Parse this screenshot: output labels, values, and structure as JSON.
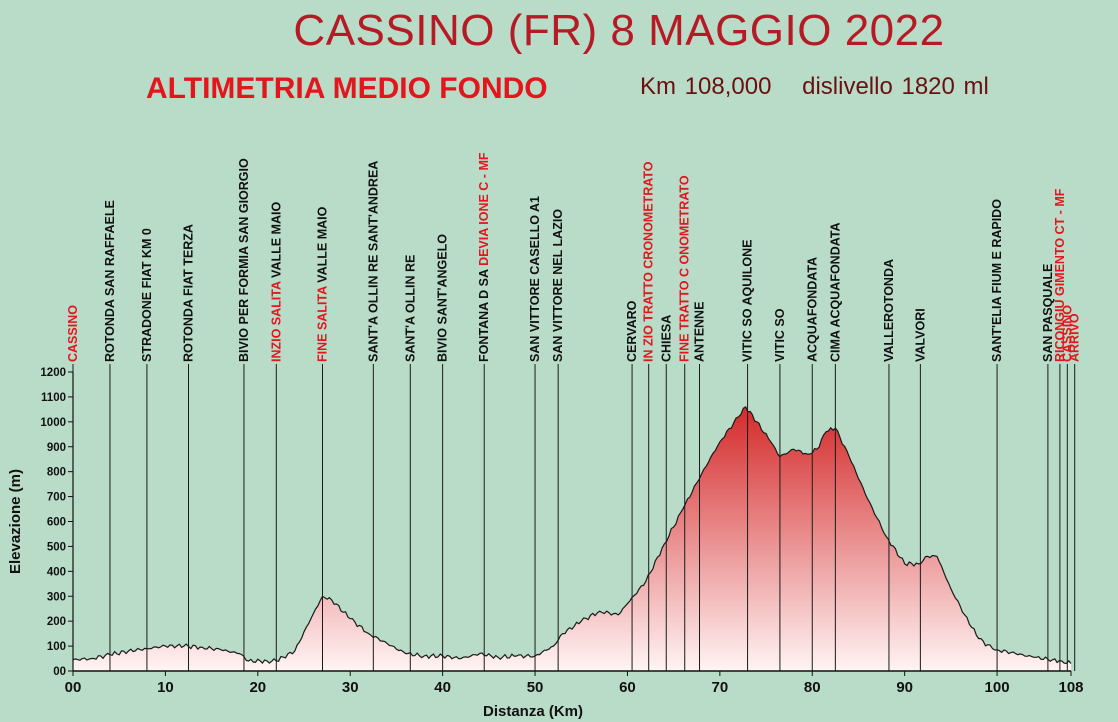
{
  "header": {
    "title": "CASSINO (FR)  8 MAGGIO 2022",
    "subtitle": "ALTIMETRIA  MEDIO FONDO",
    "distance": "Km 108,000",
    "elevation_gain": "dislivello 1820 ml"
  },
  "colors": {
    "background": "#b9dcc8",
    "fill_top": "#d42a2a",
    "fill_bottom": "#fff4f4",
    "label_black": "#111111",
    "label_red": "#e3161d"
  },
  "chart_data": {
    "type": "area",
    "title": "ALTIMETRIA  MEDIO FONDO",
    "xlabel": "Distanza (Km)",
    "ylabel": "Elevazione (m)",
    "xlim": [
      0,
      108
    ],
    "ylim": [
      0,
      1200
    ],
    "x_ticks": [
      "00",
      "10",
      "20",
      "30",
      "40",
      "50",
      "60",
      "70",
      "80",
      "90",
      "100",
      "108"
    ],
    "x_tick_values": [
      0,
      10,
      20,
      30,
      40,
      50,
      60,
      70,
      80,
      90,
      100,
      108
    ],
    "y_ticks": [
      0,
      100,
      200,
      300,
      400,
      500,
      600,
      700,
      800,
      900,
      1000,
      1100,
      1200
    ],
    "y_tick_labels": [
      "00",
      "100",
      "200",
      "300",
      "400",
      "500",
      "600",
      "700",
      "800",
      "900",
      "1000",
      "1100",
      "1200"
    ],
    "grid": false,
    "x": [
      0,
      2,
      4,
      6,
      8,
      10,
      12,
      14,
      16,
      18,
      19,
      21,
      22,
      24,
      26,
      27,
      28,
      30,
      32,
      34,
      36,
      38,
      40,
      42,
      44,
      46,
      48,
      50,
      52,
      53,
      55,
      57,
      59,
      60,
      62,
      64,
      66,
      68,
      70,
      72,
      72.8,
      74,
      75.5,
      76.5,
      78,
      79.5,
      80.5,
      81.5,
      82.5,
      84,
      86,
      88,
      90,
      91.5,
      92.5,
      93.5,
      95,
      96.5,
      98,
      99.5,
      100,
      102,
      104,
      106,
      107,
      108
    ],
    "y": [
      45,
      50,
      65,
      80,
      90,
      100,
      100,
      95,
      85,
      70,
      40,
      40,
      40,
      80,
      230,
      300,
      285,
      210,
      150,
      110,
      70,
      60,
      60,
      50,
      70,
      55,
      60,
      60,
      100,
      150,
      200,
      240,
      225,
      270,
      360,
      510,
      650,
      790,
      920,
      1020,
      1060,
      1000,
      920,
      860,
      890,
      870,
      890,
      960,
      975,
      860,
      690,
      540,
      430,
      430,
      460,
      460,
      330,
      225,
      130,
      90,
      85,
      70,
      55,
      45,
      40,
      30
    ],
    "waypoints": [
      {
        "km": 0,
        "label": "CASSINO",
        "red": true
      },
      {
        "km": 4,
        "label": "ROTONDA SAN RAFFAELE",
        "red": false
      },
      {
        "km": 8,
        "label": "STRADONE FIAT KM 0",
        "red": false
      },
      {
        "km": 12.5,
        "label": "ROTONDA  FIAT TERZA",
        "red": false
      },
      {
        "km": 18.5,
        "label": "BIVIO PER FORMIA SAN GIORGIO",
        "red": false
      },
      {
        "km": 22,
        "label": "INZIO SALITA",
        "red": true,
        "label2": "VALLE MAIO"
      },
      {
        "km": 27,
        "label": "FINE SALITA",
        "red": true,
        "label2": "VALLE MAIO"
      },
      {
        "km": 32.5,
        "label": "SANT'A   OLLIN   RE SANT'ANDREA",
        "red": false
      },
      {
        "km": 36.5,
        "label": "SANT'A   OLLIN   RE",
        "red": false
      },
      {
        "km": 40,
        "label": "BIVIO SANT'ANGELO",
        "red": false
      },
      {
        "km": 44.5,
        "label": "FONTANA D   SA",
        "red": false,
        "label2": "DEVIA   IONE C  - MF",
        "red2": true
      },
      {
        "km": 50,
        "label": "SAN VITTORE CASELLO A1",
        "red": false
      },
      {
        "km": 52.5,
        "label": "SAN VITTORE NEL LAZIO",
        "red": false
      },
      {
        "km": 60.5,
        "label": "CERVARO",
        "red": false
      },
      {
        "km": 62.3,
        "label": "IN ZIO TRATTO CRONOMETRATO",
        "red": true
      },
      {
        "km": 64.2,
        "label": "CHIESA",
        "red": false
      },
      {
        "km": 66.2,
        "label": "FINE  TRATTO C   ONOMETRATO",
        "red": true
      },
      {
        "km": 67.8,
        "label": "ANTENNE",
        "red": false
      },
      {
        "km": 73,
        "label": "VITIC   SO AQUILONE",
        "red": false
      },
      {
        "km": 76.5,
        "label": "VITIC   SO",
        "red": false
      },
      {
        "km": 80,
        "label": "ACQUAFONDATA",
        "red": false
      },
      {
        "km": 82.5,
        "label": "CIMA ACQUAFONDATA",
        "red": false
      },
      {
        "km": 88.3,
        "label": "VALLEROTONDA",
        "red": false
      },
      {
        "km": 91.7,
        "label": "VALVORI",
        "red": false
      },
      {
        "km": 100,
        "label": "SANT'ELIA FIUM   E RAPIDO",
        "red": false
      },
      {
        "km": 105.5,
        "label": "SAN PASQUALE",
        "red": false
      },
      {
        "km": 106.8,
        "label": "RICONGIU   GIMENTO CT - MF",
        "red": true
      },
      {
        "km": 107.6,
        "label": "CASSINO",
        "red": true
      },
      {
        "km": 108.4,
        "label": "ARRIVO",
        "red": true
      }
    ]
  }
}
